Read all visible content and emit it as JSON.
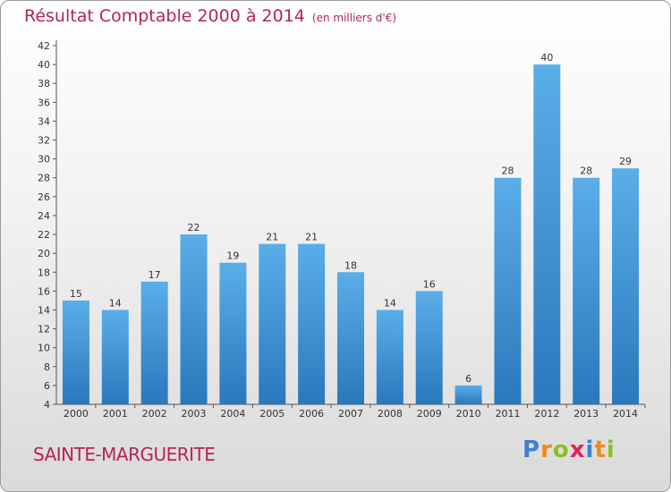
{
  "header": {
    "title": "Résultat Comptable 2000 à 2014",
    "subtitle": "(en milliers d'€)"
  },
  "footer": {
    "commune": "SAINTE-MARGUERITE",
    "logo_text": "Proxiti",
    "logo_letters": [
      {
        "ch": "P",
        "color": "#3d7fd1"
      },
      {
        "ch": "r",
        "color": "#f08a1c"
      },
      {
        "ch": "o",
        "color": "#8cbf26"
      },
      {
        "ch": "x",
        "color": "#e0245e"
      },
      {
        "ch": "i",
        "color": "#3d7fd1"
      },
      {
        "ch": "t",
        "color": "#f08a1c"
      },
      {
        "ch": "i",
        "color": "#8cbf26"
      }
    ]
  },
  "colors": {
    "accent": "#b5254f",
    "bar_top": "#5aaee8",
    "bar_bottom": "#2a78bd"
  },
  "chart_data": {
    "type": "bar",
    "title": "Résultat Comptable 2000 à 2014",
    "subtitle": "(en milliers d'€)",
    "xlabel": "",
    "ylabel": "",
    "categories": [
      "2000",
      "2001",
      "2002",
      "2003",
      "2004",
      "2005",
      "2006",
      "2007",
      "2008",
      "2009",
      "2010",
      "2011",
      "2012",
      "2013",
      "2014"
    ],
    "values": [
      15,
      14,
      17,
      22,
      19,
      21,
      21,
      18,
      14,
      16,
      6,
      28,
      40,
      28,
      29
    ],
    "ylim": [
      4,
      42
    ],
    "yticks": [
      4,
      6,
      8,
      10,
      12,
      14,
      16,
      18,
      20,
      22,
      24,
      26,
      28,
      30,
      32,
      34,
      36,
      38,
      40,
      42
    ],
    "grid": false
  }
}
